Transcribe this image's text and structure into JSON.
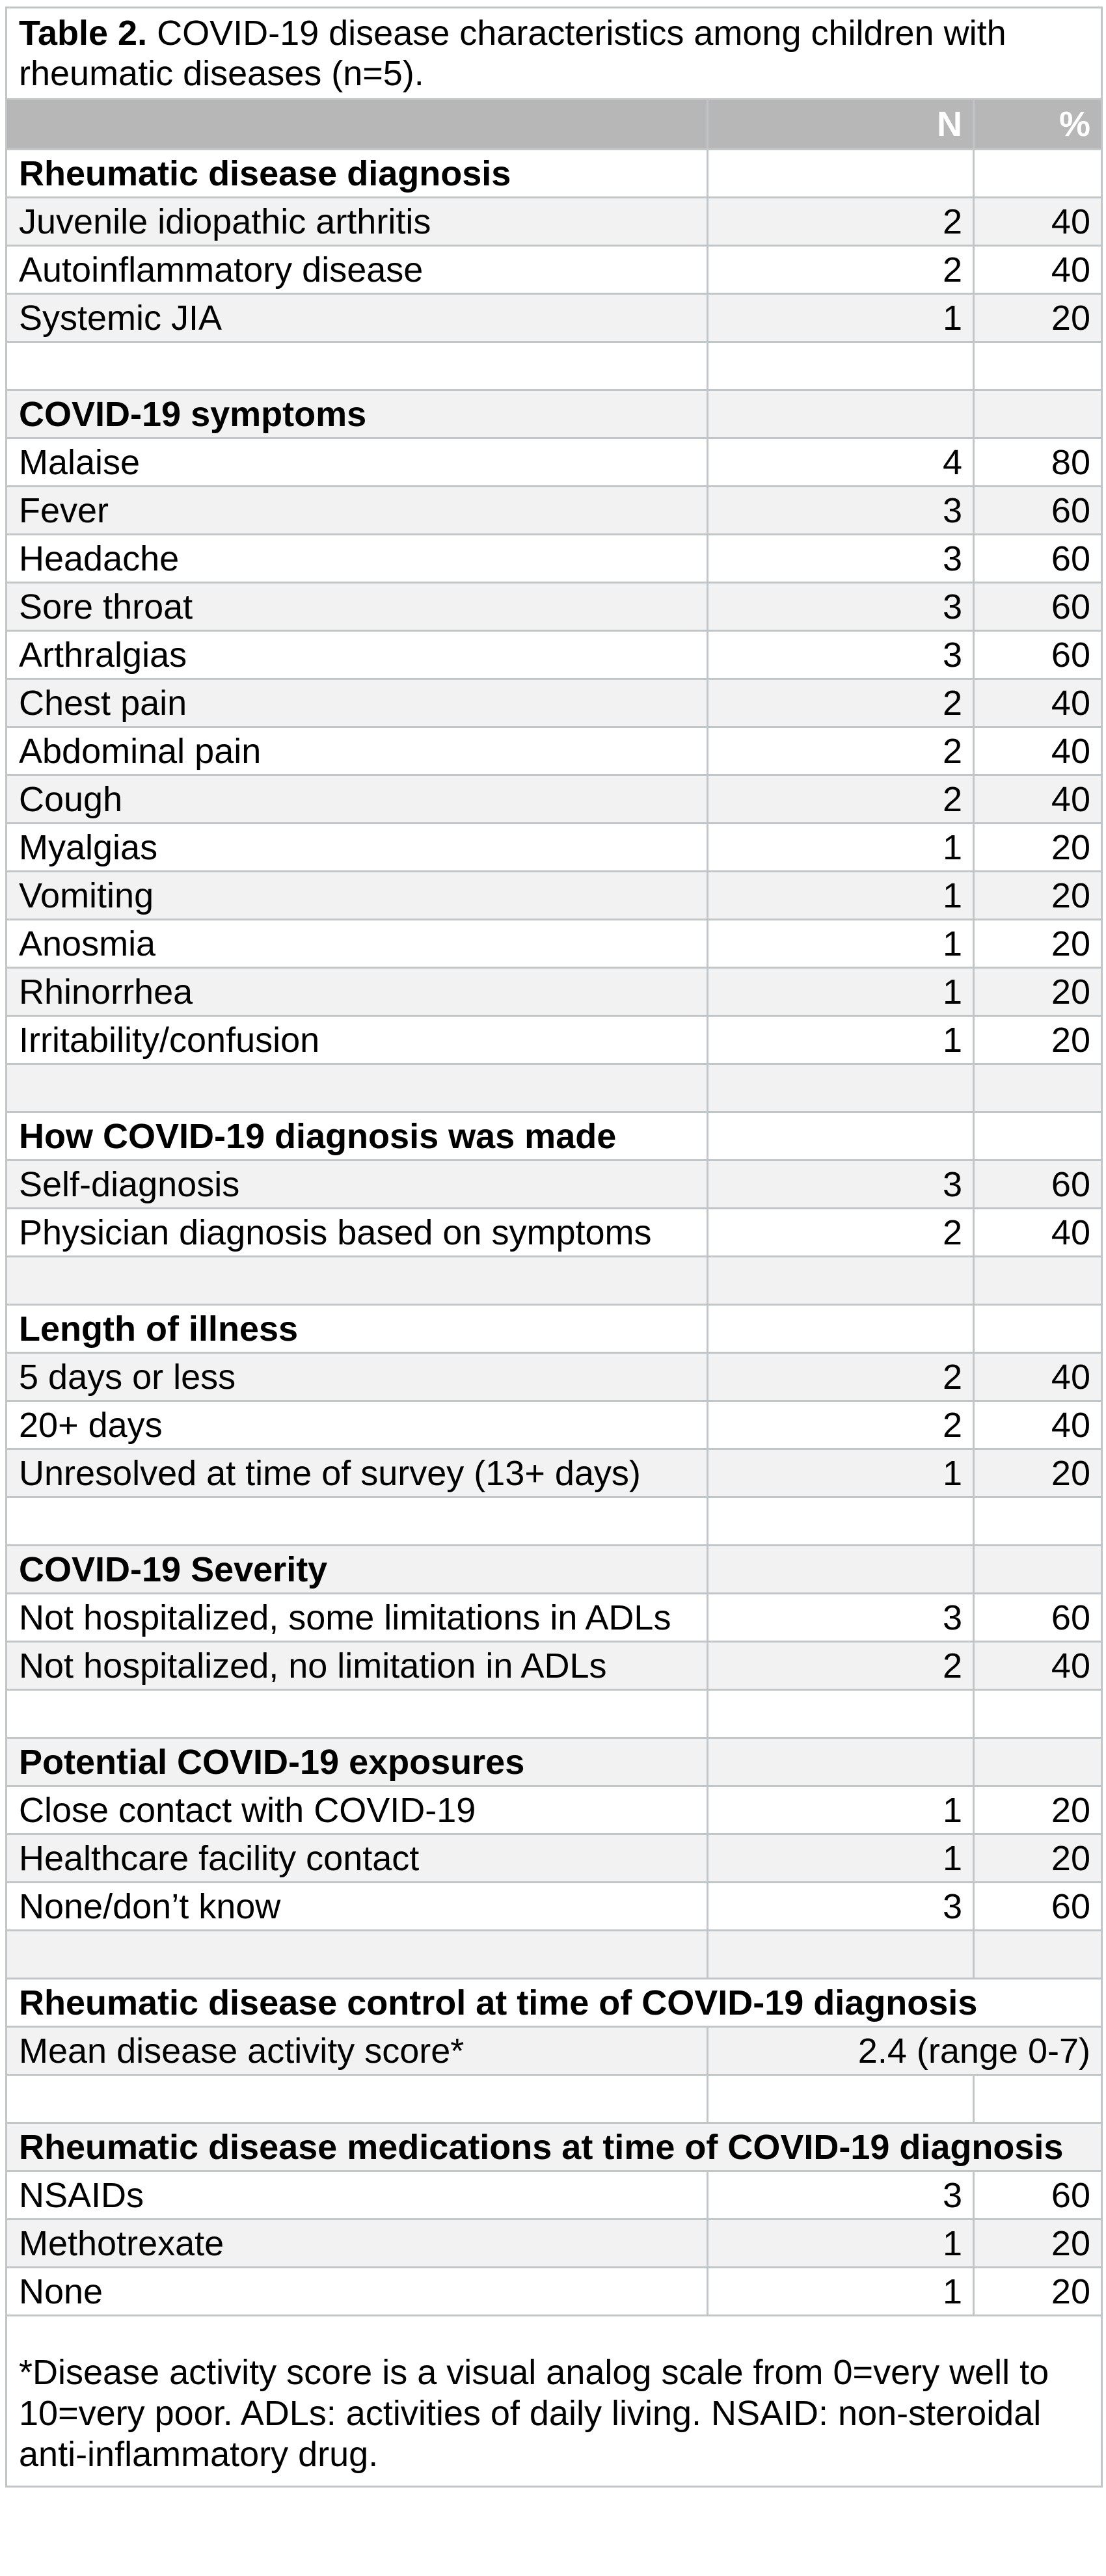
{
  "colors": {
    "header_bg": "#b7b7b7",
    "header_text": "#ffffff",
    "stripe": "#f2f2f2",
    "row_bg": "#ffffff",
    "border": "#c2c6c8",
    "text": "#000000"
  },
  "title": {
    "prefix": "Table 2.",
    "text": " COVID-19 disease characteristics among children with rheumatic diseases (n=5)."
  },
  "columns": {
    "n": "N",
    "pct": "%"
  },
  "rows": [
    {
      "label": "Rheumatic disease diagnosis"
    },
    {
      "label": "Juvenile idiopathic arthritis",
      "n": "2",
      "pct": "40"
    },
    {
      "label": "Autoinflammatory disease",
      "n": "2",
      "pct": "40"
    },
    {
      "label": "Systemic JIA",
      "n": "1",
      "pct": "20"
    },
    {},
    {
      "label": "COVID-19 symptoms"
    },
    {
      "label": "Malaise",
      "n": "4",
      "pct": "80"
    },
    {
      "label": "Fever",
      "n": "3",
      "pct": "60"
    },
    {
      "label": "Headache",
      "n": "3",
      "pct": "60"
    },
    {
      "label": "Sore throat",
      "n": "3",
      "pct": "60"
    },
    {
      "label": "Arthralgias",
      "n": "3",
      "pct": "60"
    },
    {
      "label": "Chest pain",
      "n": "2",
      "pct": "40"
    },
    {
      "label": "Abdominal pain",
      "n": "2",
      "pct": "40"
    },
    {
      "label": "Cough",
      "n": "2",
      "pct": "40"
    },
    {
      "label": "Myalgias",
      "n": "1",
      "pct": "20"
    },
    {
      "label": "Vomiting",
      "n": "1",
      "pct": "20"
    },
    {
      "label": "Anosmia",
      "n": "1",
      "pct": "20"
    },
    {
      "label": "Rhinorrhea",
      "n": "1",
      "pct": "20"
    },
    {
      "label": "Irritability/confusion",
      "n": "1",
      "pct": "20"
    },
    {},
    {
      "label": "How COVID-19 diagnosis was made"
    },
    {
      "label": "Self-diagnosis",
      "n": "3",
      "pct": "60"
    },
    {
      "label": "Physician diagnosis based on symptoms",
      "n": "2",
      "pct": "40"
    },
    {},
    {
      "label": "Length of illness"
    },
    {
      "label": "5 days or less",
      "n": "2",
      "pct": "40"
    },
    {
      "label": "20+ days",
      "n": "2",
      "pct": "40"
    },
    {
      "label": "Unresolved at time of survey (13+ days)",
      "n": "1",
      "pct": "20"
    },
    {},
    {
      "label": "COVID-19 Severity"
    },
    {
      "label": "Not hospitalized, some limitations in ADLs",
      "n": "3",
      "pct": "60"
    },
    {
      "label": "Not hospitalized, no limitation in ADLs",
      "n": "2",
      "pct": "40"
    },
    {},
    {
      "label": "Potential COVID-19 exposures"
    },
    {
      "label": "Close contact with COVID-19",
      "n": "1",
      "pct": "20"
    },
    {
      "label": "Healthcare facility contact",
      "n": "1",
      "pct": "20"
    },
    {
      "label": "None/don’t know",
      "n": "3",
      "pct": "60"
    },
    {},
    {
      "label": "Rheumatic disease control at time of COVID-19 diagnosis"
    },
    {
      "label": "Mean disease activity score*",
      "value": "2.4 (range 0-7)"
    },
    {},
    {
      "label": "Rheumatic disease medications at time of COVID-19 diagnosis"
    },
    {
      "label": "NSAIDs",
      "n": "3",
      "pct": "60"
    },
    {
      "label": "Methotrexate",
      "n": "1",
      "pct": "20"
    },
    {
      "label": "None",
      "n": "1",
      "pct": "20"
    }
  ],
  "footnote": "*Disease activity score is a visual analog scale from 0=very well to 10=very poor. ADLs: activities of daily living. NSAID: non-steroidal anti-inflammatory drug."
}
